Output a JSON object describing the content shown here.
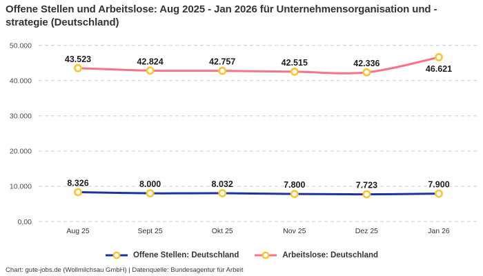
{
  "title": "Offene Stellen und Arbeitslose: Aug 2025 - Jan 2026 für Unternehmensorganisation und -strategie (Deutschland)",
  "footer": "Chart: gute-jobs.de (Wollmilchsau GmbH) | Datenquelle: Bundesagentur für Arbeit",
  "colors": {
    "grid": "#cbcbcb",
    "axis_text": "#4a4a4a",
    "data_label": "#1c1c1c",
    "marker_stroke": "#fdc330",
    "marker_fill": "#ffffff",
    "offene_stellen": "#1c33a0",
    "arbeitslose": "#f97285"
  },
  "chart_data": {
    "type": "line",
    "title": "Offene Stellen und Arbeitslose: Aug 2025 - Jan 2026 für Unternehmensorganisation und -strategie (Deutschland)",
    "categories": [
      "Aug 25",
      "Sept 25",
      "Okt 25",
      "Nov 25",
      "Dez 25",
      "Jan 26"
    ],
    "series": [
      {
        "name": "Offene Stellen: Deutschland",
        "color": "#1c33a0",
        "values": [
          8326,
          8000,
          8032,
          7800,
          7723,
          7900
        ],
        "labels": [
          "8.326",
          "8.000",
          "8.032",
          "7.800",
          "7.723",
          "7.900"
        ],
        "label_positions": [
          "above",
          "above",
          "above",
          "above",
          "above",
          "above"
        ]
      },
      {
        "name": "Arbeitslose: Deutschland",
        "color": "#f97285",
        "values": [
          43523,
          42824,
          42757,
          42515,
          42336,
          46621
        ],
        "labels": [
          "43.523",
          "42.824",
          "42.757",
          "42.515",
          "42.336",
          "46.621"
        ],
        "label_positions": [
          "above",
          "above",
          "above",
          "above",
          "above",
          "below"
        ]
      }
    ],
    "ylim": [
      0,
      50000
    ],
    "yticks": [
      {
        "value": 0,
        "label": "0,00"
      },
      {
        "value": 10000,
        "label": "10.000"
      },
      {
        "value": 20000,
        "label": "20.000"
      },
      {
        "value": 30000,
        "label": "30.000"
      },
      {
        "value": 40000,
        "label": "40.000"
      },
      {
        "value": 50000,
        "label": "50.000"
      }
    ],
    "grid": "horizontal-dashed",
    "legend_position": "bottom",
    "marker": {
      "shape": "circle",
      "fill": "#ffffff",
      "stroke": "#fdc330"
    }
  },
  "legend": [
    {
      "label": "Offene Stellen: Deutschland"
    },
    {
      "label": "Arbeitslose: Deutschland"
    }
  ]
}
